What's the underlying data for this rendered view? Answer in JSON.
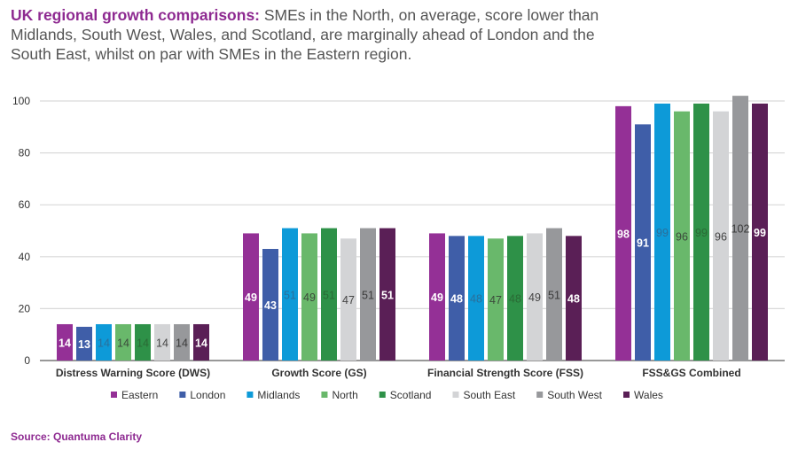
{
  "title": {
    "bold": "UK regional growth comparisons:",
    "text": " SMEs in the North, on average, score lower than Midlands, South West, Wales, and Scotland, are marginally ahead of London and the South East, whilst on par with SMEs in the Eastern region."
  },
  "source": "Source: Quantuma Clarity",
  "chart_data": {
    "type": "bar",
    "categories": [
      "Distress Warning Score (DWS)",
      "Growth Score (GS)",
      "Financial Strength Score (FSS)",
      "FSS&GS Combined"
    ],
    "ylim": [
      0,
      100
    ],
    "yticks": [
      0,
      20,
      40,
      60,
      80,
      100
    ],
    "grid": true,
    "legend": "bottom",
    "series": [
      {
        "name": "Eastern",
        "color": "#943096",
        "label_color": "#ffffff",
        "values": [
          14,
          49,
          49,
          98
        ]
      },
      {
        "name": "London",
        "color": "#3f5ea8",
        "label_color": "#ffffff",
        "values": [
          13,
          43,
          48,
          91
        ]
      },
      {
        "name": "Midlands",
        "color": "#0d9ad8",
        "label_color": "#2a6f9a",
        "values": [
          14,
          51,
          48,
          99
        ]
      },
      {
        "name": "North",
        "color": "#69b86b",
        "label_color": "#3b4a3b",
        "values": [
          14,
          49,
          47,
          96
        ]
      },
      {
        "name": "Scotland",
        "color": "#2e9148",
        "label_color": "#2a6a35",
        "values": [
          14,
          51,
          48,
          99
        ]
      },
      {
        "name": "South East",
        "color": "#d3d4d6",
        "label_color": "#444444",
        "values": [
          14,
          47,
          49,
          96
        ]
      },
      {
        "name": "South West",
        "color": "#97989b",
        "label_color": "#3a3a3a",
        "values": [
          14,
          51,
          51,
          102
        ]
      },
      {
        "name": "Wales",
        "color": "#5a1f56",
        "label_color": "#ffffff",
        "values": [
          14,
          51,
          48,
          99
        ]
      }
    ]
  }
}
